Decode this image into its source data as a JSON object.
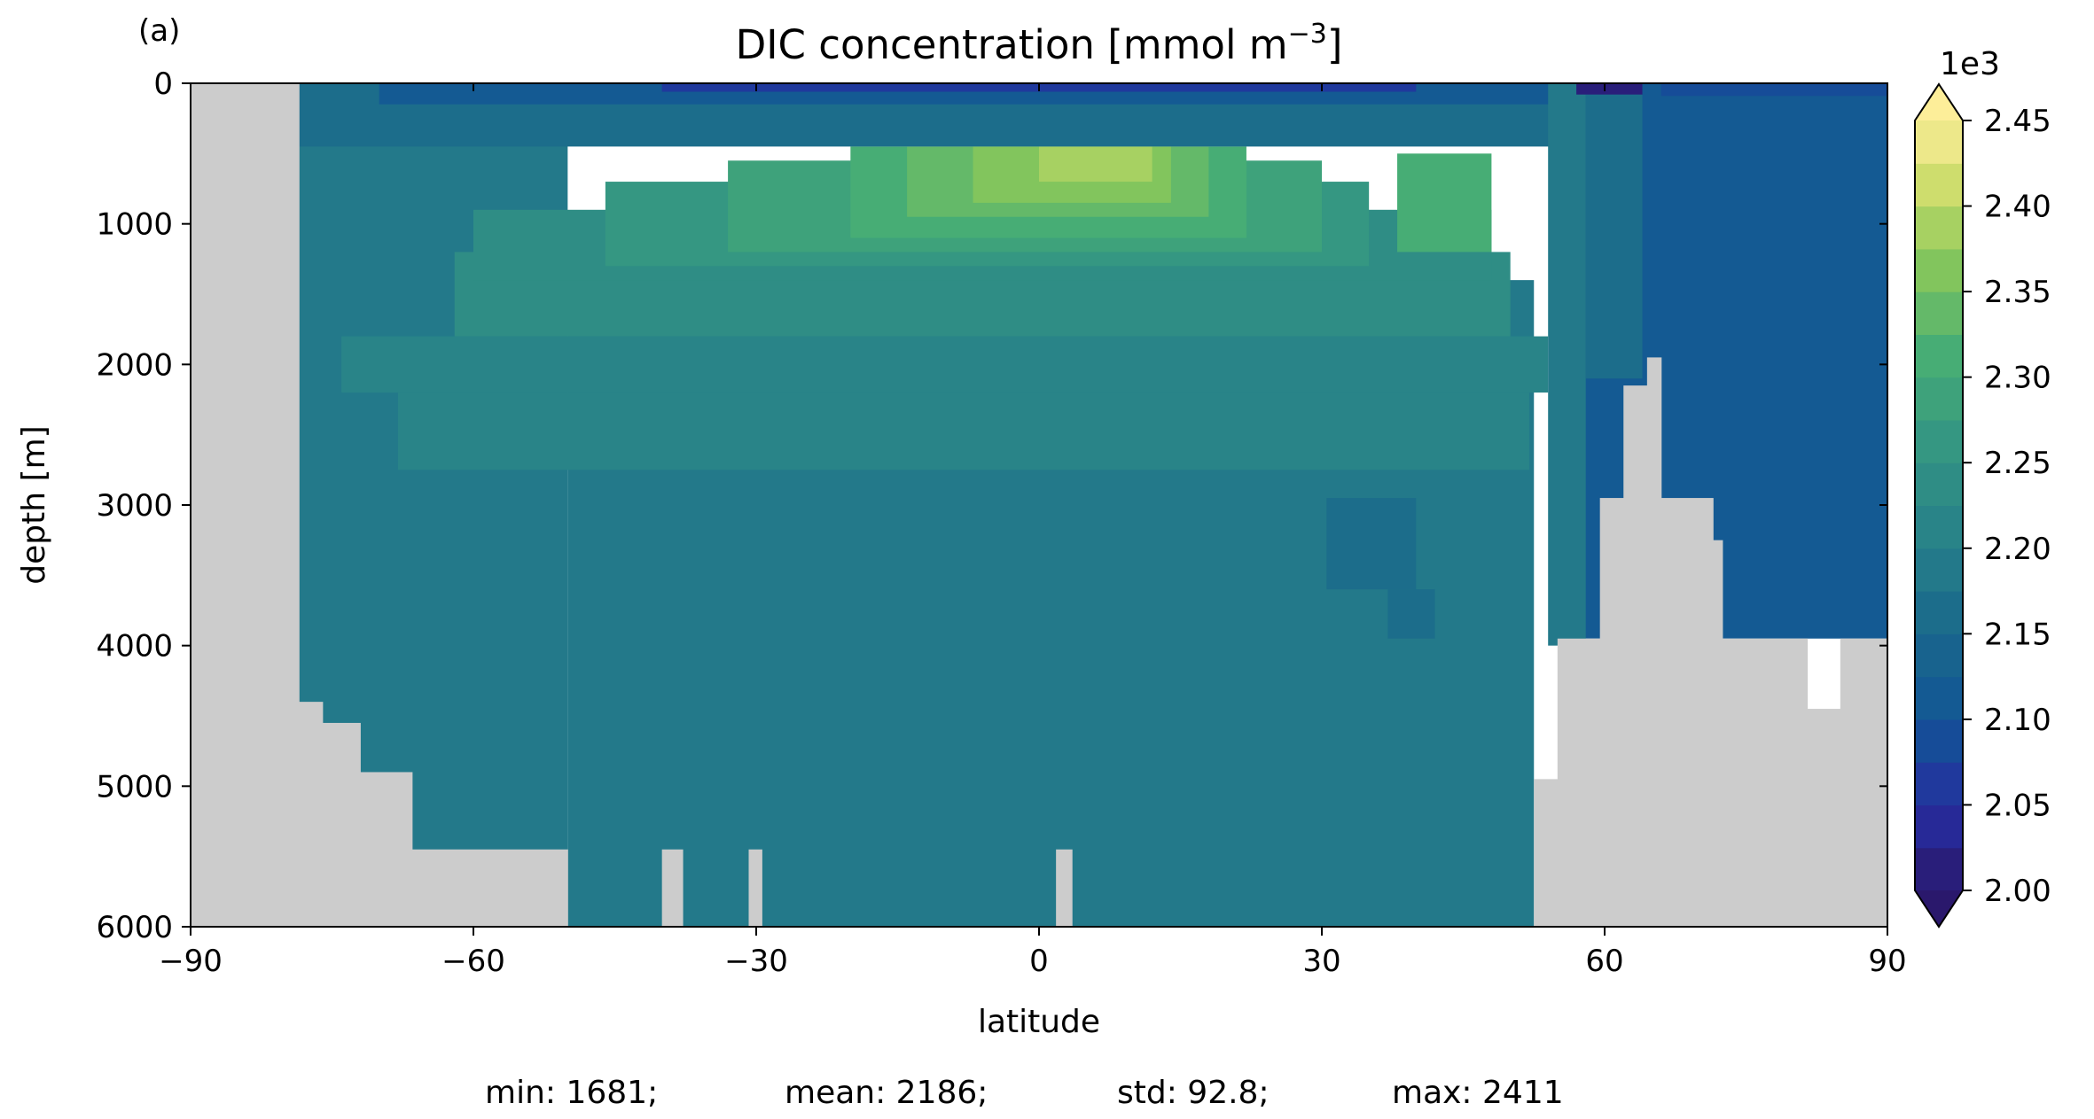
{
  "panel_label": "(a)",
  "chart_data": {
    "type": "heatmap",
    "title": "DIC concentration [mmol m",
    "title_superscript": "−3",
    "title_suffix": "]",
    "xlabel": "latitude",
    "ylabel": "depth [m]",
    "xlim": [
      -90,
      90
    ],
    "ylim": [
      6000,
      0
    ],
    "y_inverted": true,
    "x_ticks": [
      -90,
      -60,
      -30,
      0,
      30,
      60,
      90
    ],
    "x_tick_labels": [
      "−90",
      "−60",
      "−30",
      "0",
      "30",
      "60",
      "90"
    ],
    "y_ticks": [
      0,
      1000,
      2000,
      3000,
      4000,
      5000,
      6000
    ],
    "y_tick_labels": [
      "0",
      "1000",
      "2000",
      "3000",
      "4000",
      "5000",
      "6000"
    ],
    "colorbar": {
      "multiplier": "1e3",
      "levels": [
        2.0,
        2.025,
        2.05,
        2.075,
        2.1,
        2.125,
        2.15,
        2.175,
        2.2,
        2.225,
        2.25,
        2.275,
        2.3,
        2.325,
        2.35,
        2.375,
        2.4,
        2.425,
        2.45
      ],
      "tick_values": [
        2.0,
        2.05,
        2.1,
        2.15,
        2.2,
        2.25,
        2.3,
        2.35,
        2.4,
        2.45
      ],
      "tick_labels": [
        "2.00",
        "2.05",
        "2.10",
        "2.15",
        "2.20",
        "2.25",
        "2.30",
        "2.35",
        "2.40",
        "2.45"
      ],
      "extend": "both",
      "colormap": "haline"
    },
    "land_color": "#cccccc",
    "stats": {
      "min": "min: 1681;",
      "mean": "mean: 2186;",
      "std": "std: 92.8;",
      "max": "max: 2411"
    },
    "land_mask": [
      {
        "lat": [
          -90,
          -78.5
        ],
        "depth": [
          0,
          6000
        ]
      },
      {
        "lat": [
          -78.5,
          -76
        ],
        "depth": [
          4400,
          6000
        ]
      },
      {
        "lat": [
          -76,
          -72
        ],
        "depth": [
          4550,
          6000
        ]
      },
      {
        "lat": [
          -72,
          -66.5
        ],
        "depth": [
          4900,
          6000
        ]
      },
      {
        "lat": [
          -66.5,
          -50
        ],
        "depth": [
          5450,
          6000
        ]
      },
      {
        "lat": [
          -40,
          -37.8
        ],
        "depth": [
          5450,
          6000
        ]
      },
      {
        "lat": [
          -30.8,
          -29.4
        ],
        "depth": [
          5450,
          6000
        ]
      },
      {
        "lat": [
          1.8,
          3.5
        ],
        "depth": [
          5450,
          6000
        ]
      },
      {
        "lat": [
          52.5,
          55
        ],
        "depth": [
          4950,
          6000
        ]
      },
      {
        "lat": [
          55,
          59.5
        ],
        "depth": [
          3950,
          6000
        ]
      },
      {
        "lat": [
          59.5,
          62
        ],
        "depth": [
          2950,
          6000
        ]
      },
      {
        "lat": [
          62,
          64.5
        ],
        "depth": [
          2150,
          6000
        ]
      },
      {
        "lat": [
          64.5,
          66
        ],
        "depth": [
          1950,
          6000
        ]
      },
      {
        "lat": [
          66,
          71.5
        ],
        "depth": [
          2950,
          6000
        ]
      },
      {
        "lat": [
          71.5,
          72.5
        ],
        "depth": [
          3250,
          6000
        ]
      },
      {
        "lat": [
          72.5,
          81.5
        ],
        "depth": [
          3950,
          6000
        ]
      },
      {
        "lat": [
          81.5,
          85
        ],
        "depth": [
          4450,
          6000
        ]
      },
      {
        "lat": [
          85,
          90
        ],
        "depth": [
          3950,
          6000
        ]
      }
    ],
    "field_regions": [
      {
        "lat": [
          -78.5,
          -50
        ],
        "depth": [
          0,
          6000
        ],
        "value": 2.19
      },
      {
        "lat": [
          -50,
          52.5
        ],
        "depth": [
          1400,
          6000
        ],
        "value": 2.19
      },
      {
        "lat": [
          -68,
          52
        ],
        "depth": [
          2200,
          2750
        ],
        "value": 2.21
      },
      {
        "lat": [
          -74,
          54
        ],
        "depth": [
          1800,
          2200
        ],
        "value": 2.215
      },
      {
        "lat": [
          -62,
          50
        ],
        "depth": [
          1200,
          1800
        ],
        "value": 2.23
      },
      {
        "lat": [
          -60,
          48
        ],
        "depth": [
          900,
          1400
        ],
        "value": 2.245
      },
      {
        "lat": [
          -46,
          35
        ],
        "depth": [
          700,
          1300
        ],
        "value": 2.265
      },
      {
        "lat": [
          -33,
          30
        ],
        "depth": [
          550,
          1200
        ],
        "value": 2.29
      },
      {
        "lat": [
          -20,
          22
        ],
        "depth": [
          450,
          1100
        ],
        "value": 2.315
      },
      {
        "lat": [
          -14,
          18
        ],
        "depth": [
          450,
          950
        ],
        "value": 2.34
      },
      {
        "lat": [
          -7,
          14
        ],
        "depth": [
          450,
          850
        ],
        "value": 2.36
      },
      {
        "lat": [
          0,
          12
        ],
        "depth": [
          450,
          700
        ],
        "value": 2.385
      },
      {
        "lat": [
          38,
          48
        ],
        "depth": [
          500,
          1200
        ],
        "value": 2.3
      },
      {
        "lat": [
          -78.5,
          58
        ],
        "depth": [
          0,
          450
        ],
        "value": 2.17
      },
      {
        "lat": [
          -70,
          55
        ],
        "depth": [
          0,
          150
        ],
        "value": 2.11
      },
      {
        "lat": [
          -40,
          40
        ],
        "depth": [
          0,
          60
        ],
        "value": 2.05
      },
      {
        "lat": [
          56,
          90
        ],
        "depth": [
          0,
          3950
        ],
        "value": 2.12
      },
      {
        "lat": [
          58,
          64
        ],
        "depth": [
          0,
          2100
        ],
        "value": 2.16
      },
      {
        "lat": [
          54,
          58
        ],
        "depth": [
          0,
          4000
        ],
        "value": 2.175
      },
      {
        "lat": [
          30.5,
          40
        ],
        "depth": [
          2950,
          3600
        ],
        "value": 2.165
      },
      {
        "lat": [
          37,
          42
        ],
        "depth": [
          3600,
          3950
        ],
        "value": 2.165
      },
      {
        "lat": [
          57,
          64
        ],
        "depth": [
          0,
          80
        ],
        "value": 2.02
      },
      {
        "lat": [
          66,
          90
        ],
        "depth": [
          0,
          90
        ],
        "value": 2.08
      }
    ]
  }
}
